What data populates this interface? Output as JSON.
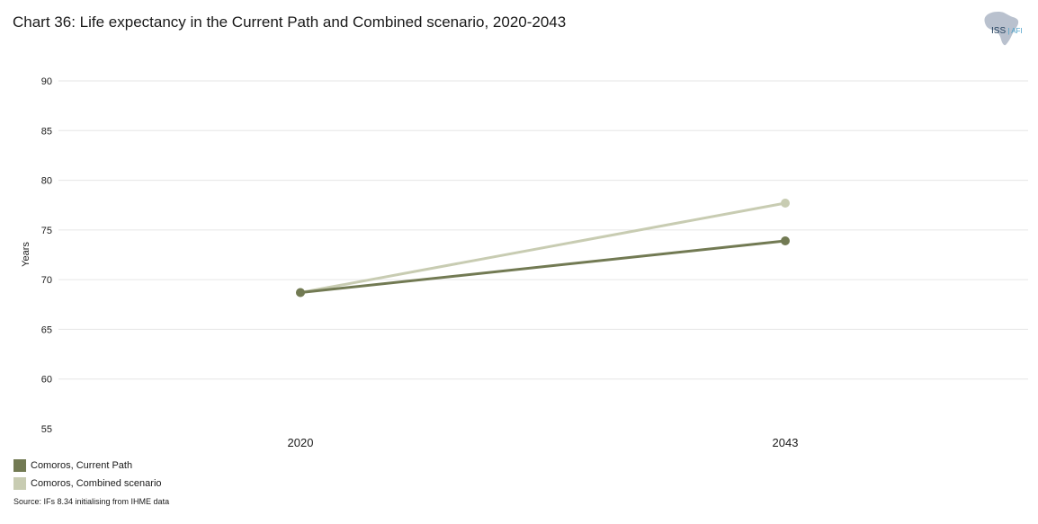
{
  "header": {
    "title": "Chart 36: Life expectancy in the Current Path and Combined scenario, 2020-2043"
  },
  "logo": {
    "main_text": "ISS",
    "sub_text": "AFI",
    "icon": "africa-map-icon"
  },
  "chart_data": {
    "type": "line",
    "title": "Chart 36: Life expectancy in the Current Path and Combined scenario, 2020-2043",
    "xlabel": "",
    "ylabel": "Years",
    "categories": [
      "2020",
      "2043"
    ],
    "ylim": [
      55,
      90
    ],
    "yticks": [
      55,
      60,
      65,
      70,
      75,
      80,
      85,
      90
    ],
    "grid": true,
    "legend_position": "bottom-left",
    "series": [
      {
        "name": "Comoros, Current Path",
        "values": [
          68.7,
          73.9
        ],
        "color": "#727a53"
      },
      {
        "name": "Comoros, Combined scenario",
        "values": [
          68.7,
          77.7
        ],
        "color": "#c8ccb2"
      }
    ]
  },
  "legend": {
    "items": [
      {
        "label": "Comoros, Current Path",
        "color": "#727a53"
      },
      {
        "label": "Comoros, Combined scenario",
        "color": "#c8ccb2"
      }
    ]
  },
  "footer": {
    "source": "Source: IFs 8.34 initialising from IHME data"
  }
}
